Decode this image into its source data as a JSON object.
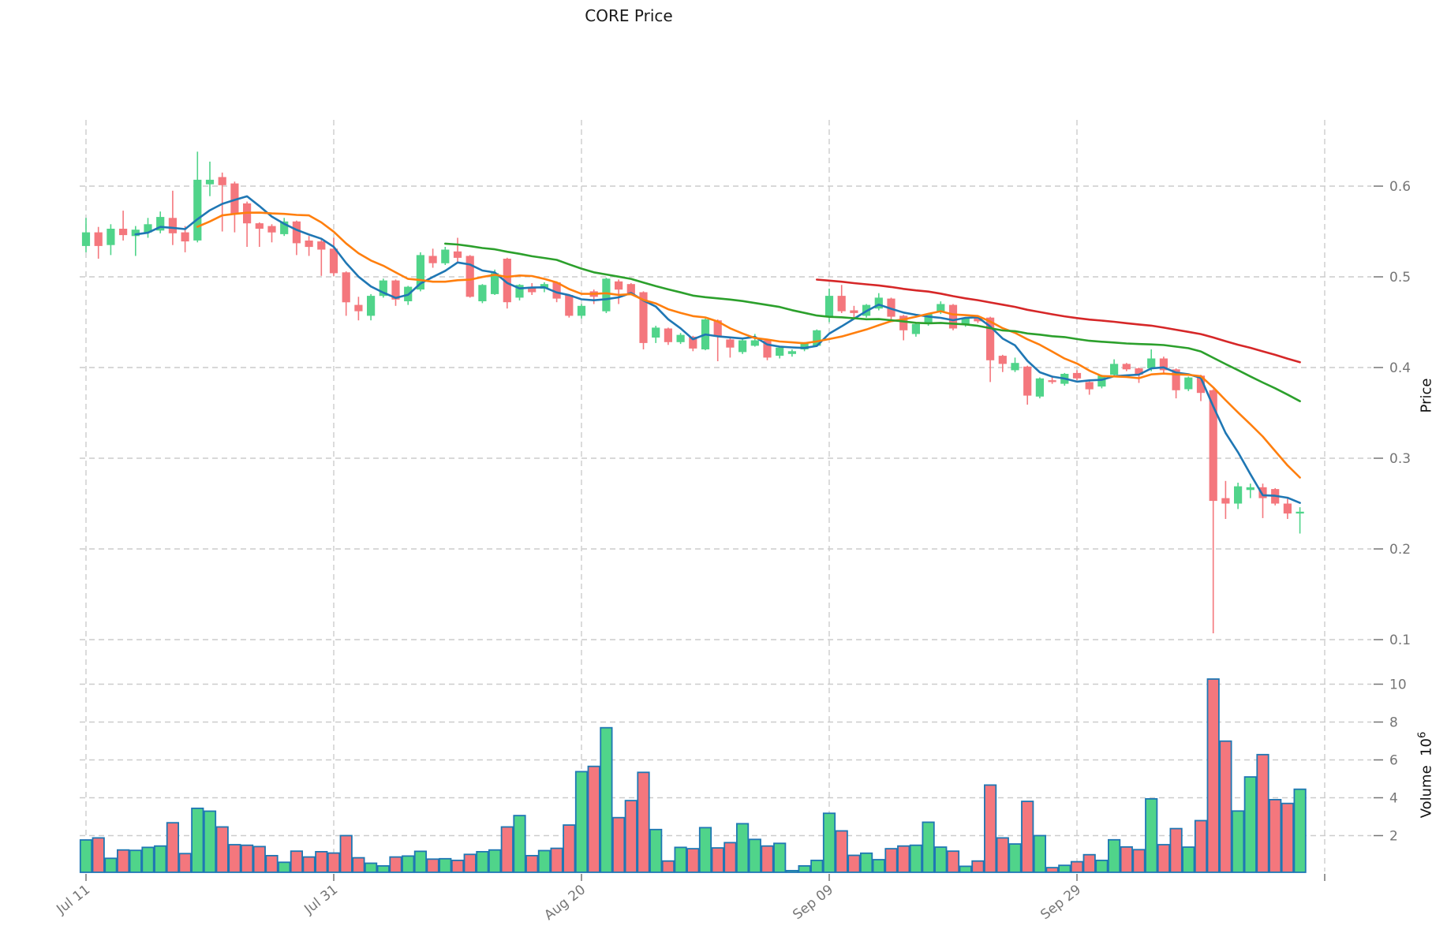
{
  "title": "CORE Price",
  "price_axis": {
    "label": "Price",
    "ticks": [
      0.1,
      0.2,
      0.3,
      0.4,
      0.5,
      0.6
    ]
  },
  "volume_axis": {
    "label": "Volume",
    "unit_base": "10",
    "unit_exp": "6",
    "ticks": [
      2,
      4,
      6,
      8,
      10
    ]
  },
  "colors": {
    "up": "#50d48a",
    "down": "#f4777d",
    "volume_edge": "#1f77b4",
    "ma5": "#1f77b4",
    "ma10": "#ff7f0e",
    "ma30": "#2ca02c",
    "ma60": "#d62728",
    "grid": "#cccccc",
    "tick_text": "#757575",
    "title_text": "#1a1a1a"
  },
  "chart_data": {
    "type": "candlestick_with_volume",
    "title": "CORE Price",
    "ylabel_price": "Price",
    "ylabel_volume": "Volume 10^6",
    "price_ylim_gridlines": [
      0.1,
      0.6
    ],
    "volume_ticks_millions": [
      2,
      4,
      6,
      8,
      10
    ],
    "grid": true,
    "x_axis": {
      "ticks": [
        {
          "label": "Jul 11",
          "day": 0
        },
        {
          "label": "Jul 31",
          "day": 20
        },
        {
          "label": "Aug 20",
          "day": 40
        },
        {
          "label": "Sep 09",
          "day": 60
        },
        {
          "label": "Sep 29",
          "day": 80
        },
        {
          "label": "",
          "day": 100
        }
      ]
    },
    "mavs": [
      {
        "name": "MA5",
        "window": 5,
        "color": "#1f77b4"
      },
      {
        "name": "MA10",
        "window": 10,
        "color": "#ff7f0e"
      },
      {
        "name": "MA30",
        "window": 30,
        "color": "#2ca02c"
      },
      {
        "name": "MA60",
        "window": 60,
        "color": "#d62728"
      }
    ],
    "dates": [
      "Jul 11",
      "Jul 12",
      "Jul 13",
      "Jul 14",
      "Jul 15",
      "Jul 16",
      "Jul 17",
      "Jul 18",
      "Jul 19",
      "Jul 20",
      "Jul 21",
      "Jul 22",
      "Jul 23",
      "Jul 24",
      "Jul 25",
      "Jul 26",
      "Jul 27",
      "Jul 28",
      "Jul 29",
      "Jul 30",
      "Jul 31",
      "Aug 01",
      "Aug 02",
      "Aug 03",
      "Aug 04",
      "Aug 05",
      "Aug 06",
      "Aug 07",
      "Aug 08",
      "Aug 09",
      "Aug 10",
      "Aug 11",
      "Aug 12",
      "Aug 13",
      "Aug 14",
      "Aug 15",
      "Aug 16",
      "Aug 17",
      "Aug 18",
      "Aug 19",
      "Aug 20",
      "Aug 21",
      "Aug 22",
      "Aug 23",
      "Aug 24",
      "Aug 25",
      "Aug 26",
      "Aug 27",
      "Aug 28",
      "Aug 29",
      "Aug 30",
      "Aug 31",
      "Sep 01",
      "Sep 02",
      "Sep 03",
      "Sep 04",
      "Sep 05",
      "Sep 06",
      "Sep 07",
      "Sep 08",
      "Sep 09",
      "Sep 10",
      "Sep 11",
      "Sep 12",
      "Sep 13",
      "Sep 14",
      "Sep 15",
      "Sep 16",
      "Sep 17",
      "Sep 18",
      "Sep 19",
      "Sep 20",
      "Sep 21",
      "Sep 22",
      "Sep 23",
      "Sep 24",
      "Sep 25",
      "Sep 26",
      "Sep 27",
      "Sep 28",
      "Sep 29",
      "Sep 30",
      "Oct 01",
      "Oct 02",
      "Oct 03",
      "Oct 04",
      "Oct 05",
      "Oct 06",
      "Oct 07",
      "Oct 08",
      "Oct 09",
      "Oct 10",
      "Oct 11",
      "Oct 12",
      "Oct 13",
      "Oct 14",
      "Oct 15",
      "Oct 16",
      "Oct 17"
    ],
    "ohlc": [
      [
        0.534,
        0.565,
        0.527,
        0.549
      ],
      [
        0.549,
        0.555,
        0.52,
        0.534
      ],
      [
        0.535,
        0.558,
        0.524,
        0.553
      ],
      [
        0.553,
        0.573,
        0.54,
        0.546
      ],
      [
        0.545,
        0.556,
        0.523,
        0.552
      ],
      [
        0.549,
        0.565,
        0.543,
        0.558
      ],
      [
        0.551,
        0.572,
        0.548,
        0.566
      ],
      [
        0.565,
        0.595,
        0.535,
        0.548
      ],
      [
        0.549,
        0.556,
        0.527,
        0.539
      ],
      [
        0.54,
        0.638,
        0.538,
        0.607
      ],
      [
        0.602,
        0.627,
        0.589,
        0.607
      ],
      [
        0.61,
        0.615,
        0.55,
        0.601
      ],
      [
        0.603,
        0.605,
        0.549,
        0.57
      ],
      [
        0.581,
        0.583,
        0.533,
        0.559
      ],
      [
        0.559,
        0.56,
        0.533,
        0.553
      ],
      [
        0.556,
        0.558,
        0.538,
        0.549
      ],
      [
        0.547,
        0.565,
        0.545,
        0.561
      ],
      [
        0.561,
        0.562,
        0.524,
        0.537
      ],
      [
        0.54,
        0.545,
        0.523,
        0.533
      ],
      [
        0.539,
        0.541,
        0.501,
        0.53
      ],
      [
        0.531,
        0.543,
        0.501,
        0.504
      ],
      [
        0.505,
        0.506,
        0.457,
        0.472
      ],
      [
        0.469,
        0.478,
        0.452,
        0.462
      ],
      [
        0.457,
        0.481,
        0.452,
        0.479
      ],
      [
        0.479,
        0.498,
        0.477,
        0.496
      ],
      [
        0.496,
        0.497,
        0.468,
        0.475
      ],
      [
        0.473,
        0.49,
        0.469,
        0.489
      ],
      [
        0.486,
        0.527,
        0.484,
        0.524
      ],
      [
        0.523,
        0.531,
        0.51,
        0.515
      ],
      [
        0.515,
        0.533,
        0.513,
        0.53
      ],
      [
        0.528,
        0.543,
        0.515,
        0.521
      ],
      [
        0.523,
        0.524,
        0.477,
        0.478
      ],
      [
        0.473,
        0.492,
        0.471,
        0.491
      ],
      [
        0.481,
        0.508,
        0.48,
        0.504
      ],
      [
        0.52,
        0.521,
        0.465,
        0.472
      ],
      [
        0.477,
        0.492,
        0.474,
        0.491
      ],
      [
        0.489,
        0.493,
        0.48,
        0.483
      ],
      [
        0.487,
        0.494,
        0.483,
        0.492
      ],
      [
        0.494,
        0.495,
        0.472,
        0.476
      ],
      [
        0.48,
        0.481,
        0.455,
        0.457
      ],
      [
        0.457,
        0.47,
        0.454,
        0.468
      ],
      [
        0.484,
        0.486,
        0.47,
        0.478
      ],
      [
        0.462,
        0.499,
        0.46,
        0.498
      ],
      [
        0.495,
        0.497,
        0.47,
        0.486
      ],
      [
        0.492,
        0.493,
        0.48,
        0.481
      ],
      [
        0.483,
        0.484,
        0.42,
        0.427
      ],
      [
        0.433,
        0.446,
        0.427,
        0.444
      ],
      [
        0.443,
        0.444,
        0.425,
        0.428
      ],
      [
        0.428,
        0.438,
        0.426,
        0.436
      ],
      [
        0.434,
        0.435,
        0.418,
        0.421
      ],
      [
        0.42,
        0.454,
        0.419,
        0.453
      ],
      [
        0.452,
        0.453,
        0.407,
        0.434
      ],
      [
        0.431,
        0.433,
        0.411,
        0.422
      ],
      [
        0.417,
        0.431,
        0.415,
        0.43
      ],
      [
        0.424,
        0.437,
        0.423,
        0.43
      ],
      [
        0.43,
        0.431,
        0.408,
        0.411
      ],
      [
        0.413,
        0.423,
        0.41,
        0.422
      ],
      [
        0.415,
        0.42,
        0.412,
        0.418
      ],
      [
        0.42,
        0.428,
        0.418,
        0.427
      ],
      [
        0.424,
        0.442,
        0.423,
        0.441
      ],
      [
        0.456,
        0.487,
        0.45,
        0.479
      ],
      [
        0.479,
        0.491,
        0.46,
        0.462
      ],
      [
        0.463,
        0.468,
        0.455,
        0.46
      ],
      [
        0.457,
        0.47,
        0.455,
        0.469
      ],
      [
        0.465,
        0.482,
        0.463,
        0.477
      ],
      [
        0.476,
        0.477,
        0.453,
        0.456
      ],
      [
        0.457,
        0.458,
        0.43,
        0.441
      ],
      [
        0.437,
        0.449,
        0.434,
        0.448
      ],
      [
        0.448,
        0.46,
        0.446,
        0.459
      ],
      [
        0.461,
        0.473,
        0.459,
        0.47
      ],
      [
        0.469,
        0.47,
        0.441,
        0.443
      ],
      [
        0.448,
        0.455,
        0.445,
        0.454
      ],
      [
        0.456,
        0.457,
        0.449,
        0.451
      ],
      [
        0.455,
        0.456,
        0.384,
        0.408
      ],
      [
        0.413,
        0.414,
        0.395,
        0.404
      ],
      [
        0.397,
        0.411,
        0.395,
        0.405
      ],
      [
        0.401,
        0.402,
        0.359,
        0.369
      ],
      [
        0.368,
        0.389,
        0.366,
        0.388
      ],
      [
        0.386,
        0.39,
        0.382,
        0.384
      ],
      [
        0.382,
        0.394,
        0.38,
        0.393
      ],
      [
        0.394,
        0.397,
        0.386,
        0.388
      ],
      [
        0.384,
        0.385,
        0.37,
        0.376
      ],
      [
        0.379,
        0.392,
        0.377,
        0.391
      ],
      [
        0.392,
        0.409,
        0.39,
        0.404
      ],
      [
        0.404,
        0.405,
        0.396,
        0.398
      ],
      [
        0.399,
        0.4,
        0.383,
        0.392
      ],
      [
        0.399,
        0.42,
        0.396,
        0.41
      ],
      [
        0.41,
        0.412,
        0.394,
        0.397
      ],
      [
        0.398,
        0.399,
        0.366,
        0.375
      ],
      [
        0.376,
        0.39,
        0.374,
        0.389
      ],
      [
        0.391,
        0.392,
        0.363,
        0.372
      ],
      [
        0.375,
        0.376,
        0.107,
        0.253
      ],
      [
        0.256,
        0.275,
        0.233,
        0.25
      ],
      [
        0.25,
        0.273,
        0.244,
        0.269
      ],
      [
        0.265,
        0.272,
        0.256,
        0.268
      ],
      [
        0.268,
        0.272,
        0.234,
        0.256
      ],
      [
        0.266,
        0.267,
        0.248,
        0.25
      ],
      [
        0.25,
        0.257,
        0.233,
        0.239
      ],
      [
        0.239,
        0.246,
        0.217,
        0.241
      ]
    ],
    "volume_millions": [
      1.77,
      1.88,
      0.8,
      1.24,
      1.22,
      1.38,
      1.45,
      2.68,
      1.05,
      3.44,
      3.29,
      2.46,
      1.52,
      1.49,
      1.42,
      0.94,
      0.59,
      1.18,
      0.87,
      1.15,
      1.08,
      2.0,
      0.83,
      0.54,
      0.4,
      0.87,
      0.92,
      1.17,
      0.76,
      0.78,
      0.69,
      1.01,
      1.15,
      1.24,
      2.46,
      3.06,
      0.94,
      1.21,
      1.33,
      2.56,
      5.38,
      5.66,
      7.7,
      2.95,
      3.85,
      5.34,
      2.32,
      0.66,
      1.38,
      1.31,
      2.42,
      1.35,
      1.63,
      2.63,
      1.8,
      1.45,
      1.59,
      0.15,
      0.4,
      0.69,
      3.18,
      2.25,
      0.96,
      1.07,
      0.73,
      1.31,
      1.45,
      1.49,
      2.71,
      1.39,
      1.18,
      0.38,
      0.66,
      4.67,
      1.88,
      1.56,
      3.81,
      2.0,
      0.31,
      0.43,
      0.62,
      0.99,
      0.69,
      1.78,
      1.4,
      1.26,
      3.94,
      1.52,
      2.37,
      1.39,
      2.79,
      10.27,
      6.99,
      3.3,
      5.1,
      6.28,
      3.9,
      3.7,
      4.45
    ]
  }
}
